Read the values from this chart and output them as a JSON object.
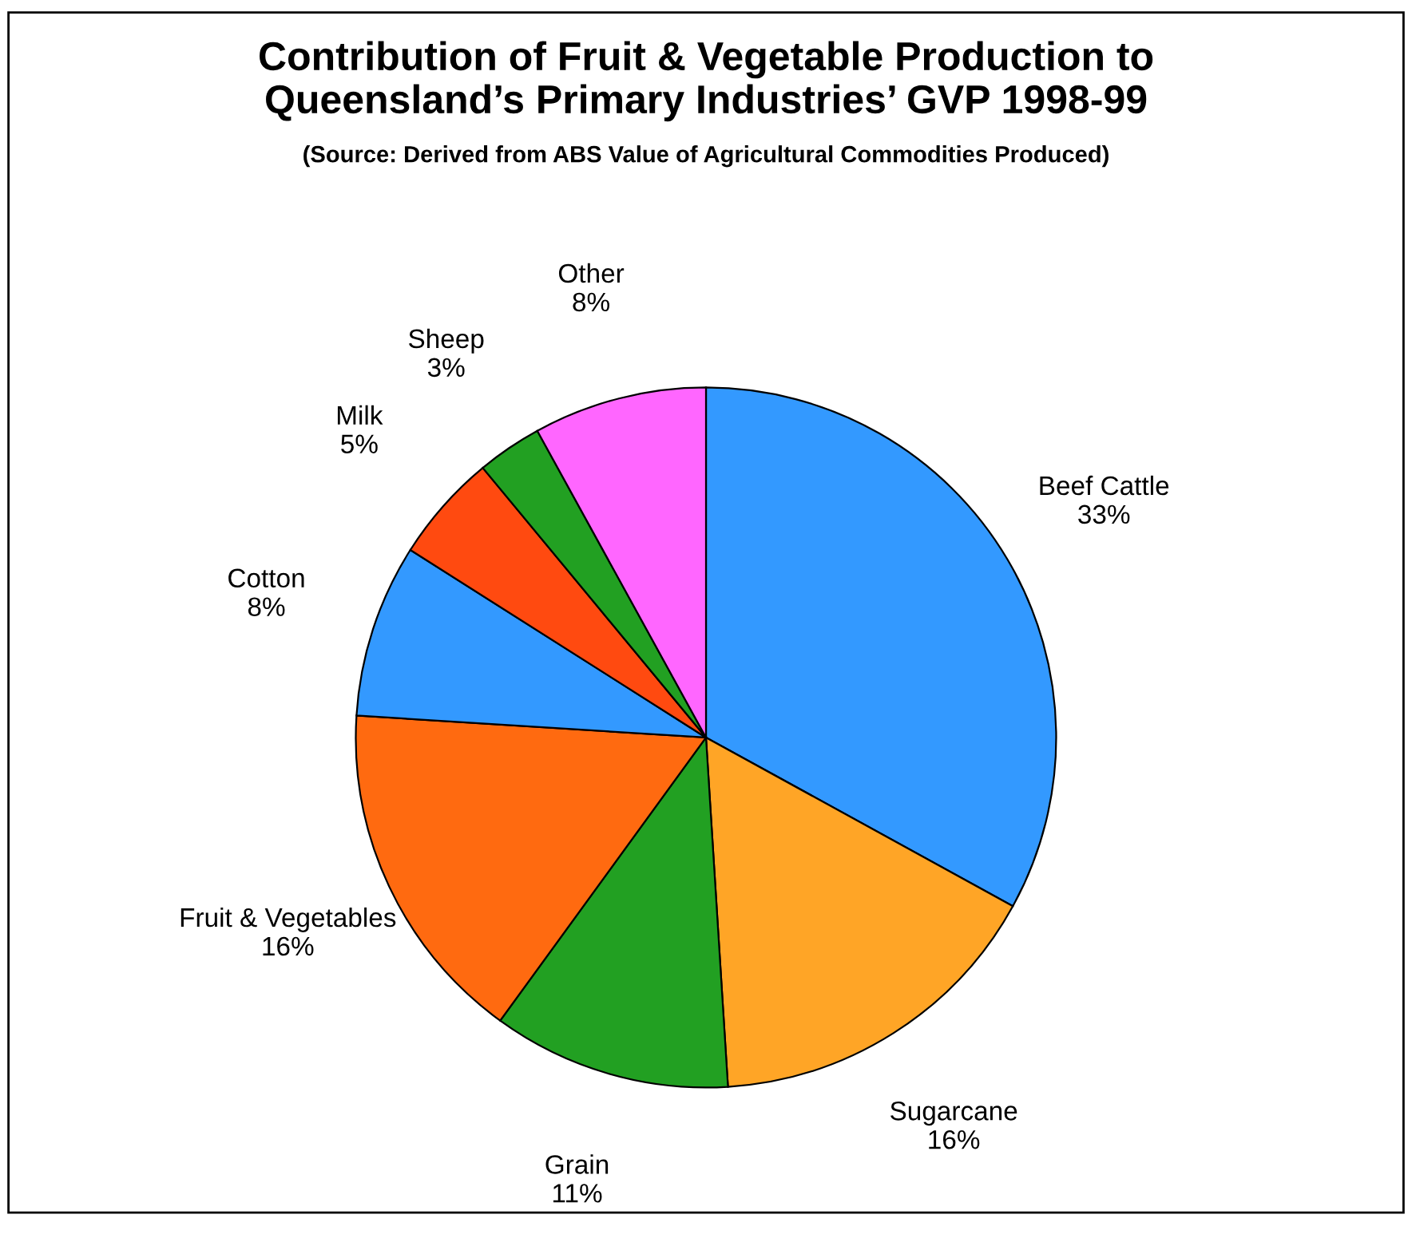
{
  "chart_data": {
    "type": "pie",
    "title": "Contribution of Fruit & Vegetable Production to\nQueensland’s Primary Industries’ GVP 1998-99",
    "subtitle": "(Source: Derived from ABS Value of Agricultural Commodities Produced)",
    "categories": [
      "Beef Cattle",
      "Sugarcane",
      "Grain",
      "Fruit & Vegetables",
      "Cotton",
      "Milk",
      "Sheep",
      "Other"
    ],
    "values": [
      33,
      16,
      11,
      16,
      8,
      5,
      3,
      8
    ],
    "value_labels": [
      "33%",
      "16%",
      "11%",
      "16%",
      "8%",
      "5%",
      "3%",
      "8%"
    ],
    "colors": [
      "#3399ff",
      "#ffa526",
      "#22a022",
      "#ff6a10",
      "#3399ff",
      "#ff4a10",
      "#22a022",
      "#ff66ff"
    ],
    "legend": false
  }
}
